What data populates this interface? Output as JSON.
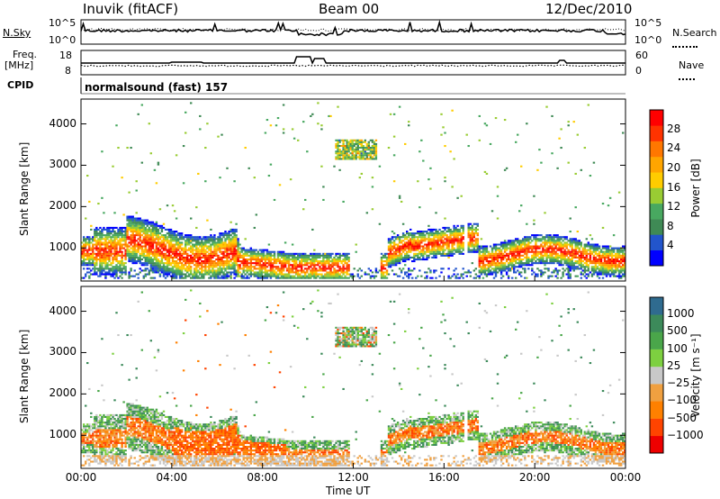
{
  "header": {
    "station": "Inuvik (fitACF)",
    "beam": "Beam 00",
    "date": "12/Dec/2010"
  },
  "strip_panels": {
    "nsky_label": "N.Sky",
    "nsearch_label": "N.Search",
    "noise_ticks_left": [
      "10^5",
      "10^0"
    ],
    "noise_ticks_right": [
      "10^5",
      "10^0"
    ],
    "freq_label": "Freq.",
    "freq_unit": "[MHz]",
    "freq_ticks": [
      "18",
      "8"
    ],
    "nave_label": "Nave",
    "nave_ticks": [
      "60",
      "0"
    ],
    "cpid_label": "CPID",
    "cpid_text": "normalsound (fast) 157"
  },
  "colors": {
    "power_scale": [
      "#0000ff",
      "#2255cc",
      "#3f8a55",
      "#48a860",
      "#99cc33",
      "#ffcc00",
      "#ffa500",
      "#ff7700",
      "#ff3300",
      "#ff0000"
    ],
    "velocity_scale": [
      "#2233bb",
      "#2f6b8f",
      "#3c8a5a",
      "#4aa64a",
      "#7dd040",
      "#c8c8c8",
      "#f0a040",
      "#ff8000",
      "#ff4400",
      "#ee0000"
    ]
  },
  "chart_data": [
    {
      "type": "heatmap",
      "name": "power",
      "ylabel": "Slant Range [km]",
      "yticks": [
        1000,
        2000,
        3000,
        4000
      ],
      "ylim": [
        200,
        4600
      ],
      "xlim": [
        0,
        24
      ],
      "colorbar_label": "Power [dB]",
      "colorbar_ticks": [
        4,
        8,
        12,
        16,
        20,
        24,
        28
      ],
      "colorbar_range": [
        0,
        32
      ]
    },
    {
      "type": "heatmap",
      "name": "velocity",
      "ylabel": "Slant Range [km]",
      "yticks": [
        1000,
        2000,
        3000,
        4000
      ],
      "ylim": [
        200,
        4600
      ],
      "xlim": [
        0,
        24
      ],
      "xlabel": "Time UT",
      "xticks": [
        "00:00",
        "04:00",
        "08:00",
        "12:00",
        "16:00",
        "20:00",
        "00:00"
      ],
      "colorbar_label": "Velocity [m s⁻¹]",
      "colorbar_ticks": [
        "1000",
        "500",
        "100",
        "25",
        "−25",
        "−100",
        "−500",
        "−1000"
      ]
    }
  ]
}
